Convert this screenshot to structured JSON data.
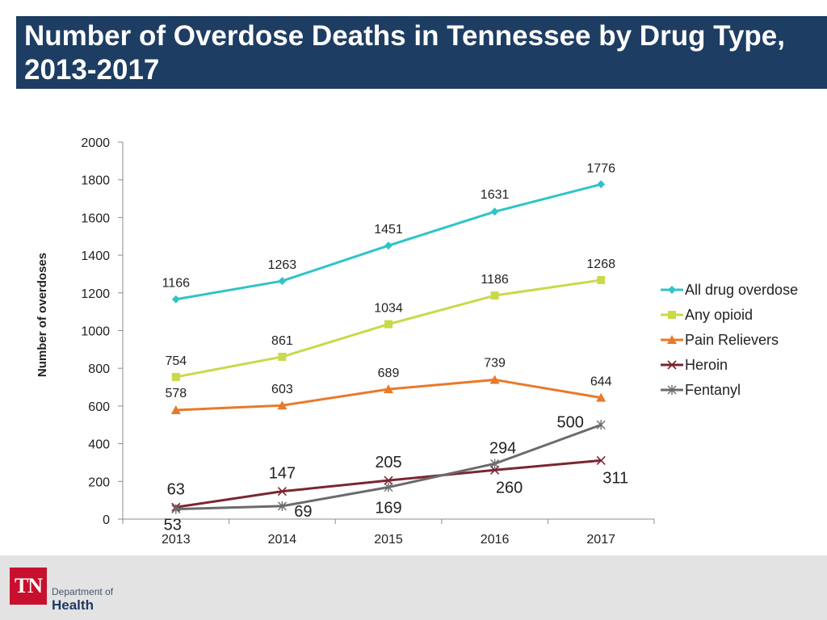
{
  "header": {
    "title": "Number of Overdose Deaths in Tennessee by Drug Type, 2013-2017"
  },
  "footer": {
    "logo_text": "TN",
    "dept_line1": "Department of",
    "dept_line2": "Health"
  },
  "colors": {
    "title_bg": "#1d3d63",
    "all_drug": "#2ec4c8",
    "any_opioid": "#c9d94a",
    "pain_relievers": "#e87a2a",
    "heroin": "#7a2630",
    "fentanyl": "#6b6b6b"
  },
  "chart_data": {
    "type": "line",
    "title": "",
    "xlabel": "",
    "ylabel": "Number of overdoses",
    "categories": [
      "2013",
      "2014",
      "2015",
      "2016",
      "2017"
    ],
    "ylim": [
      0,
      2000
    ],
    "yticks": [
      0,
      200,
      400,
      600,
      800,
      1000,
      1200,
      1400,
      1600,
      1800,
      2000
    ],
    "legend_position": "right",
    "series": [
      {
        "name": "All drug overdose",
        "marker": "diamond",
        "color": "#2ec4c8",
        "values": [
          1166,
          1263,
          1451,
          1631,
          1776
        ]
      },
      {
        "name": "Any opioid",
        "marker": "square",
        "color": "#c9d94a",
        "values": [
          754,
          861,
          1034,
          1186,
          1268
        ]
      },
      {
        "name": "Pain Relievers",
        "marker": "triangle",
        "color": "#e87a2a",
        "values": [
          578,
          603,
          689,
          739,
          644
        ]
      },
      {
        "name": "Heroin",
        "marker": "x",
        "color": "#7a2630",
        "values": [
          63,
          147,
          205,
          260,
          311
        ]
      },
      {
        "name": "Fentanyl",
        "marker": "star",
        "color": "#6b6b6b",
        "values": [
          53,
          69,
          169,
          294,
          500
        ]
      }
    ]
  }
}
